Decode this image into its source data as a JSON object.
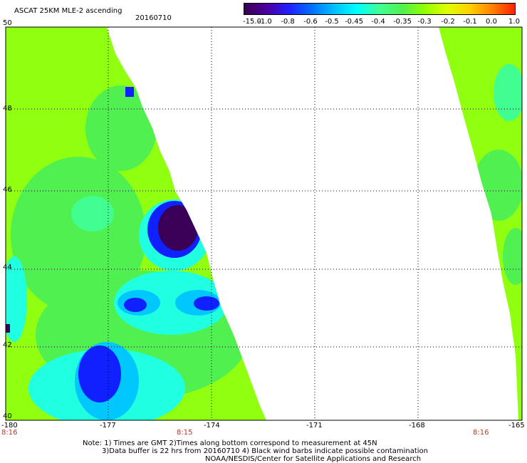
{
  "header": {
    "title": "ASCAT 25KM MLE-2 ascending",
    "date": "20160710"
  },
  "colorbar": {
    "labels": [
      "-15.0",
      "-1.0",
      "-0.8",
      "-0.6",
      "-0.5",
      "-0.45",
      "-0.4",
      "-0.35",
      "-0.3",
      "-0.2",
      "-0.1",
      "0.0",
      "1.0"
    ],
    "colors": [
      "#3a0050",
      "#4a00a0",
      "#2020ff",
      "#0070ff",
      "#00c0ff",
      "#00ffff",
      "#40ff90",
      "#50f050",
      "#90ff00",
      "#e0ff00",
      "#ffd000",
      "#ff8000",
      "#ff2000"
    ]
  },
  "map": {
    "lat_labels": [
      "50",
      "48",
      "46",
      "44",
      "42",
      "40"
    ],
    "lon_labels": [
      "-180",
      "-177",
      "-174",
      "-171",
      "-168",
      "-165"
    ],
    "time_labels": [
      "8:16",
      "8:15",
      "8:16"
    ],
    "swath_colors": {
      "base": "#90ff10",
      "green": "#50f050",
      "light_green": "#40ff90",
      "cyan": "#20ffe0",
      "sky": "#00c8ff",
      "blue": "#1020ff",
      "dark": "#3a0058"
    }
  },
  "footer": {
    "line1": "Note: 1) Times are GMT 2)Times along bottom correspond to measurement at 45N",
    "line2": "3)Data buffer is 22 hrs from 20160710 4) Black wind barbs indicate possible contamination",
    "line3": "NOAA/NESDIS/Center for Satellite Applications and Research"
  }
}
